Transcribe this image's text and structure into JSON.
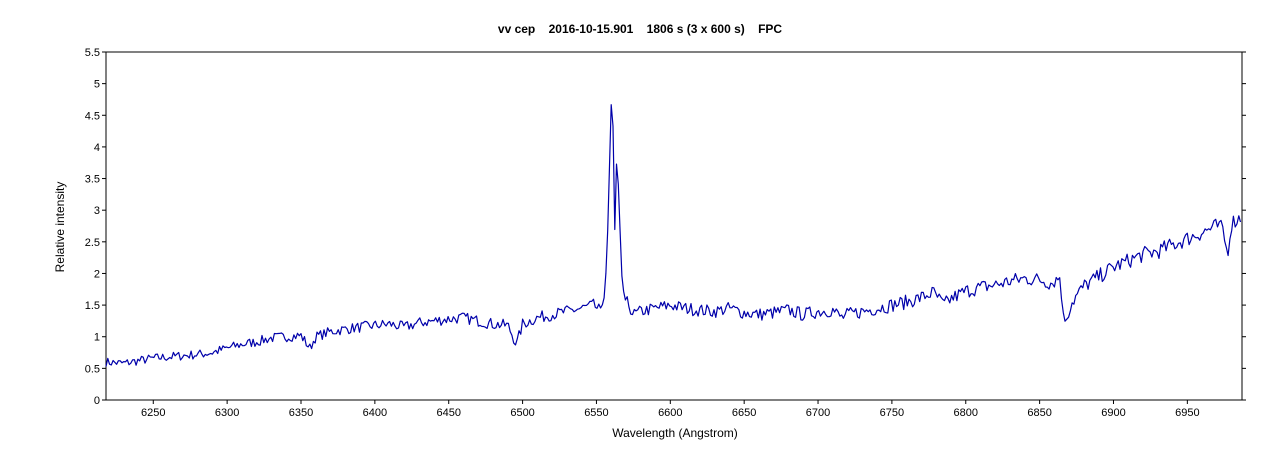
{
  "chart_data": {
    "type": "line",
    "title": "vv cep    2016-10-15.901    1806 s (3 x 600 s)    FPC",
    "xlabel": "Wavelength (Angstrom)",
    "ylabel": "Relative intensity",
    "xlim": [
      6218,
      6987
    ],
    "ylim": [
      0,
      5.5
    ],
    "x_ticks": [
      6250,
      6300,
      6350,
      6400,
      6450,
      6500,
      6550,
      6600,
      6650,
      6700,
      6750,
      6800,
      6850,
      6900,
      6950
    ],
    "y_ticks": [
      0,
      0.5,
      1,
      1.5,
      2,
      2.5,
      3,
      3.5,
      4,
      4.5,
      5,
      5.5
    ],
    "y_tick_labels": [
      "0",
      "0.5",
      "1",
      "1.5",
      "2",
      "2.5",
      "3",
      "3.5",
      "4",
      "4.5",
      "5",
      "5.5"
    ],
    "grid": false,
    "line_color": "#0000aa",
    "series": [
      {
        "x": [
          6218,
          6230,
          6240,
          6250,
          6260,
          6270,
          6280,
          6290,
          6300,
          6310,
          6320,
          6330,
          6340,
          6350,
          6356,
          6360,
          6370,
          6380,
          6390,
          6400,
          6410,
          6420,
          6430,
          6440,
          6450,
          6460,
          6470,
          6480,
          6490,
          6496,
          6500,
          6510,
          6520,
          6530,
          6540,
          6548,
          6552,
          6555,
          6557,
          6559,
          6560.5,
          6561.5,
          6562.5,
          6563,
          6564,
          6565.5,
          6567,
          6569,
          6572,
          6575,
          6580,
          6590,
          6600,
          6610,
          6620,
          6630,
          6640,
          6650,
          6660,
          6670,
          6680,
          6690,
          6700,
          6710,
          6716,
          6720,
          6730,
          6740,
          6750,
          6760,
          6770,
          6778,
          6781,
          6785,
          6790,
          6800,
          6810,
          6820,
          6830,
          6840,
          6850,
          6858,
          6864,
          6866,
          6868,
          6872,
          6880,
          6890,
          6900,
          6910,
          6920,
          6930,
          6940,
          6950,
          6960,
          6970,
          6974,
          6977,
          6980,
          6987
        ],
        "y": [
          0.6,
          0.58,
          0.62,
          0.66,
          0.68,
          0.7,
          0.72,
          0.75,
          0.82,
          0.88,
          0.92,
          0.98,
          1.0,
          1.02,
          0.82,
          1.0,
          1.08,
          1.12,
          1.15,
          1.18,
          1.2,
          1.15,
          1.22,
          1.25,
          1.28,
          1.3,
          1.25,
          1.2,
          1.18,
          0.88,
          1.2,
          1.3,
          1.35,
          1.4,
          1.45,
          1.5,
          1.42,
          1.55,
          2.2,
          3.8,
          5.1,
          4.0,
          2.55,
          3.5,
          3.88,
          3.0,
          2.0,
          1.6,
          1.5,
          1.35,
          1.4,
          1.45,
          1.5,
          1.45,
          1.42,
          1.4,
          1.45,
          1.38,
          1.35,
          1.38,
          1.42,
          1.35,
          1.4,
          1.42,
          1.3,
          1.35,
          1.4,
          1.45,
          1.5,
          1.55,
          1.62,
          1.7,
          1.62,
          1.5,
          1.6,
          1.72,
          1.78,
          1.82,
          1.88,
          1.92,
          1.9,
          1.85,
          1.95,
          1.3,
          1.3,
          1.55,
          1.8,
          1.95,
          2.1,
          2.2,
          2.3,
          2.35,
          2.45,
          2.55,
          2.65,
          2.75,
          2.7,
          2.3,
          2.8,
          2.9
        ]
      }
    ]
  }
}
